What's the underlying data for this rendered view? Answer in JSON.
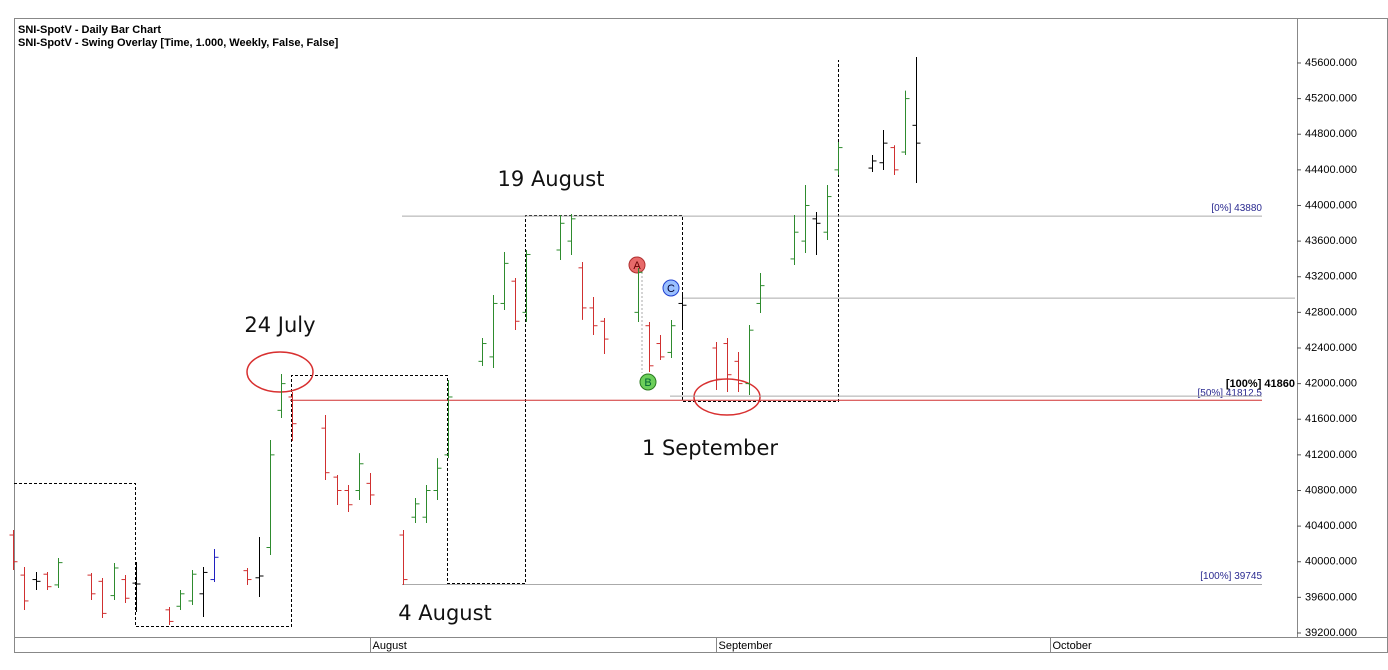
{
  "chart_data": {
    "type": "ohlc",
    "title": "SNI-SpotV - Daily Bar Chart",
    "subtitle": "SNI-SpotV - Swing Overlay [Time, 1.000, Weekly, False, False]",
    "categories": [
      null,
      null,
      null,
      null,
      null,
      null,
      null,
      null,
      null,
      null,
      null,
      null,
      null,
      null,
      null,
      null,
      null,
      null,
      null,
      null,
      null,
      null,
      null,
      null,
      null,
      null,
      null,
      null,
      null,
      null,
      null,
      null,
      "August",
      null,
      null,
      null,
      null,
      null,
      null,
      null,
      null,
      null,
      null,
      null,
      null,
      null,
      null,
      null,
      null,
      null,
      null,
      null,
      null,
      null,
      null,
      null,
      null,
      null,
      null,
      null,
      null,
      null,
      null,
      "September",
      null,
      null,
      null,
      null,
      null,
      null,
      null,
      null,
      null,
      null,
      null,
      null,
      null,
      null,
      null,
      null,
      null,
      null,
      null,
      null,
      null,
      null,
      null,
      null,
      null,
      null,
      null,
      null,
      null,
      "October",
      null,
      null,
      null,
      null,
      null,
      null,
      null,
      null,
      null,
      null,
      null,
      null,
      null,
      null,
      null,
      null,
      null,
      null,
      null,
      null,
      null,
      null
    ],
    "open": [
      40300,
      39850,
      39800,
      39860,
      39740,
      null,
      null,
      39850,
      39780,
      39620,
      39800,
      39760,
      null,
      null,
      39460,
      39500,
      39560,
      39640,
      39800,
      null,
      null,
      39900,
      39820,
      40160,
      41700,
      41850,
      null,
      null,
      41500,
      40950,
      40800,
      40800,
      40880,
      null,
      null,
      40300,
      40500,
      40500,
      40800,
      41200,
      null,
      null,
      42250,
      42300,
      42900,
      43150,
      42800,
      null,
      null,
      43500,
      43600,
      43300,
      42850,
      42700,
      null,
      null,
      42800,
      42650,
      42450,
      42350,
      42900,
      null,
      null,
      42400,
      42450,
      42250,
      42000,
      42900,
      null,
      null,
      43400,
      43600,
      43850,
      43700,
      44400,
      null,
      null,
      44420,
      44480,
      44650,
      44600,
      44900,
      null,
      null,
      null,
      null,
      null,
      null,
      null,
      null,
      null,
      null,
      null,
      null,
      null,
      null,
      null,
      null,
      null,
      null,
      null,
      null,
      null,
      null,
      null,
      null,
      null,
      null,
      null,
      null,
      null,
      null,
      null,
      null,
      null,
      null
    ],
    "high": [
      40356,
      39941,
      39885,
      39885,
      40042,
      null,
      null,
      39873,
      39817,
      39986,
      39851,
      39997,
      null,
      null,
      39492,
      39683,
      39907,
      39941,
      40143,
      null,
      null,
      39930,
      40278,
      41367,
      42108,
      41906,
      null,
      null,
      41648,
      40974,
      40861,
      41220,
      40996,
      null,
      null,
      40356,
      40715,
      40861,
      41164,
      42040,
      null,
      null,
      42512,
      42995,
      43478,
      43186,
      43500,
      null,
      null,
      43893,
      43904,
      43365,
      42972,
      42737,
      null,
      null,
      43298,
      42692,
      42546,
      42714,
      42995,
      null,
      null,
      42467,
      42512,
      42355,
      42658,
      43242,
      null,
      null,
      43893,
      44230,
      43927,
      44230,
      44713,
      null,
      null,
      44567,
      44847,
      44676,
      45290,
      45667,
      null,
      null,
      null,
      null,
      null,
      null,
      null,
      null,
      null,
      null,
      null,
      null,
      null,
      null,
      null,
      null,
      null,
      null,
      null,
      null,
      null,
      null,
      null,
      null,
      null,
      null,
      null,
      null,
      null,
      null,
      null,
      null,
      null,
      null
    ],
    "low": [
      39907,
      39458,
      39683,
      39683,
      39705,
      null,
      null,
      39570,
      39368,
      39570,
      39537,
      39436,
      null,
      null,
      39290,
      39458,
      39514,
      39379,
      39772,
      null,
      null,
      39739,
      39604,
      40076,
      41614,
      41355,
      null,
      null,
      40918,
      40637,
      40558,
      40693,
      40637,
      null,
      null,
      39739,
      40435,
      40435,
      40693,
      41164,
      null,
      null,
      42198,
      42175,
      42826,
      42602,
      42692,
      null,
      null,
      43388,
      43444,
      42716,
      42546,
      42333,
      null,
      null,
      42692,
      42130,
      42265,
      42287,
      42602,
      null,
      null,
      41928,
      41906,
      41906,
      41872,
      42793,
      null,
      null,
      43332,
      43466,
      43444,
      43612,
      44342,
      null,
      null,
      44376,
      44398,
      44342,
      44567,
      44252,
      null,
      null,
      null,
      null,
      null,
      null,
      null,
      null,
      null,
      null,
      null,
      null,
      null,
      null,
      null,
      null,
      null,
      null,
      null,
      null,
      null,
      null,
      null,
      null,
      null,
      null,
      null,
      null,
      null,
      null,
      null,
      null,
      null,
      null
    ],
    "close": [
      40000,
      39560,
      39780,
      39720,
      39990,
      null,
      null,
      39640,
      39420,
      39930,
      39590,
      39750,
      null,
      null,
      39330,
      39640,
      39860,
      39880,
      40050,
      null,
      null,
      39800,
      39840,
      41200,
      42000,
      41550,
      null,
      null,
      41000,
      40800,
      40640,
      41100,
      40750,
      null,
      null,
      39800,
      40650,
      40800,
      41050,
      41850,
      null,
      null,
      42450,
      42900,
      43350,
      42700,
      43450,
      null,
      null,
      43800,
      43850,
      42850,
      42650,
      42500,
      null,
      null,
      43250,
      42200,
      42300,
      42650,
      42880,
      null,
      null,
      42050,
      42100,
      42000,
      42600,
      43100,
      null,
      null,
      43700,
      44000,
      43800,
      44100,
      44650,
      null,
      null,
      44500,
      44700,
      44400,
      45200,
      44700,
      null,
      null,
      null,
      null,
      null,
      null,
      null,
      null,
      null,
      null,
      null,
      null,
      null,
      null,
      null,
      null,
      null,
      null,
      null,
      null,
      null,
      null,
      null,
      null,
      null,
      null,
      null,
      null,
      null,
      null,
      null,
      null,
      null,
      null
    ],
    "colors": [
      "#d03030",
      "#d03030",
      "#000000",
      "#d03030",
      "#2e8b2e",
      null,
      null,
      "#d03030",
      "#d03030",
      "#2e8b2e",
      "#d03030",
      "#000000",
      null,
      null,
      "#d03030",
      "#2e8b2e",
      "#2e8b2e",
      "#000000",
      "#2020c0",
      null,
      null,
      "#d03030",
      "#000000",
      "#2e8b2e",
      "#2e8b2e",
      "#d03030",
      null,
      null,
      "#d03030",
      "#d03030",
      "#d03030",
      "#2e8b2e",
      "#d03030",
      null,
      null,
      "#d03030",
      "#2e8b2e",
      "#2e8b2e",
      "#2e8b2e",
      "#2e8b2e",
      null,
      null,
      "#2e8b2e",
      "#2e8b2e",
      "#2e8b2e",
      "#d03030",
      "#2e8b2e",
      null,
      null,
      "#2e8b2e",
      "#2e8b2e",
      "#d03030",
      "#d03030",
      "#d03030",
      null,
      null,
      "#2e8b2e",
      "#d03030",
      "#d03030",
      "#2e8b2e",
      "#000000",
      null,
      null,
      "#d03030",
      "#d03030",
      "#d03030",
      "#2e8b2e",
      "#2e8b2e",
      null,
      null,
      "#2e8b2e",
      "#2e8b2e",
      "#000000",
      "#2e8b2e",
      "#2e8b2e",
      null,
      null,
      "#000000",
      "#000000",
      "#d03030",
      "#2e8b2e",
      "#000000",
      null,
      null,
      null,
      null,
      null,
      null,
      null,
      null,
      null,
      null,
      null,
      null,
      null,
      null,
      null,
      null,
      null,
      null,
      null,
      null,
      null,
      null,
      null,
      null,
      null,
      null,
      null,
      null,
      null,
      null,
      null,
      null,
      null,
      null
    ],
    "ylim": [
      39155,
      46105
    ],
    "yticks": [
      {
        "value": 39200,
        "label": "39200.000"
      },
      {
        "value": 39600,
        "label": "39600.000"
      },
      {
        "value": 40000,
        "label": "40000.000"
      },
      {
        "value": 40400,
        "label": "40400.000"
      },
      {
        "value": 40800,
        "label": "40800.000"
      },
      {
        "value": 41200,
        "label": "41200.000"
      },
      {
        "value": 41600,
        "label": "41600.000"
      },
      {
        "value": 42000,
        "label": "42000.000"
      },
      {
        "value": 42400,
        "label": "42400.000"
      },
      {
        "value": 42800,
        "label": "42800.000"
      },
      {
        "value": 43200,
        "label": "43200.000"
      },
      {
        "value": 43600,
        "label": "43600.000"
      },
      {
        "value": 44000,
        "label": "44000.000"
      },
      {
        "value": 44400,
        "label": "44400.000"
      },
      {
        "value": 44800,
        "label": "44800.000"
      },
      {
        "value": 45200,
        "label": "45200.000"
      },
      {
        "value": 45600,
        "label": "45600.000"
      }
    ],
    "levels": [
      {
        "label": "[0%] 43880",
        "value": 43880,
        "color": "#aaaaaa"
      },
      {
        "label": "[100%] 39745",
        "value": 39745,
        "color": "#aaaaaa"
      },
      {
        "label": "[50%] 41812.5",
        "value": 41812.5,
        "color": "#d03030"
      },
      {
        "label": "[100%] 41860",
        "value": 41860,
        "color": "#aaaaaa"
      },
      {
        "value": 42960,
        "color": "#aaaaaa"
      }
    ],
    "annotations": [
      "24 July",
      "19 August",
      "4 August",
      "1 September"
    ],
    "markers": [
      "A",
      "B",
      "C"
    ]
  }
}
